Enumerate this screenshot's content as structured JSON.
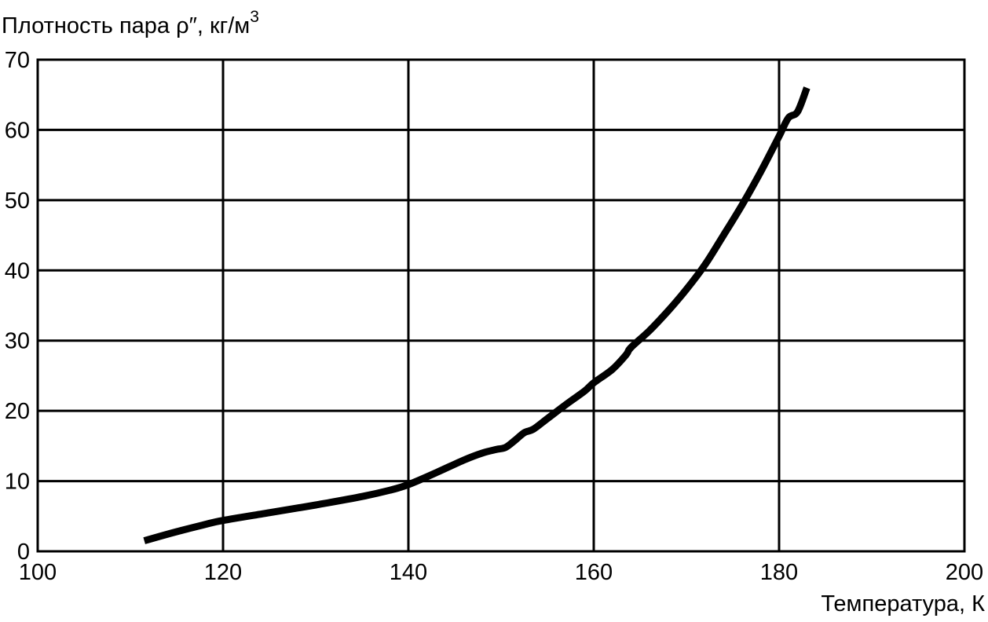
{
  "chart_data": {
    "type": "line",
    "title": "",
    "ylabel_main": "Плотность пара ρ″, кг/м",
    "ylabel_sup": "3",
    "xlabel": "Температура, К",
    "xlim": [
      100,
      200
    ],
    "ylim": [
      0,
      70
    ],
    "x_ticks": [
      100,
      120,
      140,
      160,
      180,
      200
    ],
    "y_ticks": [
      0,
      10,
      20,
      30,
      40,
      50,
      60,
      70
    ],
    "grid": true,
    "line_color": "#000000",
    "series": [
      {
        "x": [
          111.5,
          115,
          118,
          120,
          125,
          130,
          135,
          138,
          140,
          143,
          146,
          148,
          149.5,
          150.5,
          151.5,
          152.5,
          153.5,
          155,
          157,
          159,
          160,
          162,
          163.5,
          164,
          166,
          168,
          170,
          172,
          174,
          176,
          178,
          180,
          181,
          182,
          183
        ],
        "y": [
          1.5,
          2.8,
          3.8,
          4.4,
          5.5,
          6.6,
          7.8,
          8.7,
          9.5,
          11.2,
          13.0,
          14.0,
          14.5,
          14.8,
          15.8,
          16.9,
          17.4,
          18.9,
          20.9,
          22.8,
          24.0,
          25.9,
          28.0,
          29.0,
          31.4,
          34.2,
          37.3,
          40.8,
          45.0,
          49.3,
          54.0,
          59.1,
          61.7,
          62.6,
          66.0
        ]
      }
    ]
  }
}
